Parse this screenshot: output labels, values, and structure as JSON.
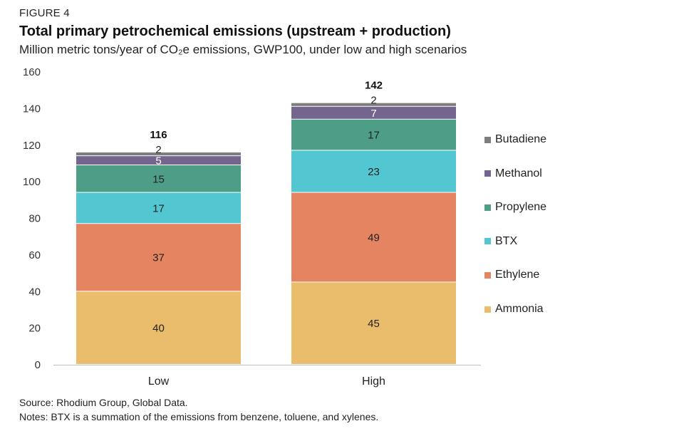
{
  "figure_label": "FIGURE 4",
  "title": "Total primary petrochemical emissions (upstream + production)",
  "subtitle": "Million metric tons/year of CO₂e emissions, GWP100, under low and high scenarios",
  "source": "Source: Rhodium Group, Global Data.",
  "notes": "Notes: BTX is a summation of the emissions from benzene, toluene, and xylenes.",
  "chart_data": {
    "type": "bar",
    "stacked": true,
    "title": "Total primary petrochemical emissions (upstream + production)",
    "xlabel": "",
    "ylabel": "",
    "ylim": [
      0,
      160
    ],
    "yticks": [
      0,
      20,
      40,
      60,
      80,
      100,
      120,
      140,
      160
    ],
    "grid": false,
    "legend_position": "right",
    "categories": [
      "Low",
      "High"
    ],
    "totals": [
      116,
      142
    ],
    "series": [
      {
        "name": "Ammonia",
        "color": "#E9BD6B",
        "values": [
          40,
          45
        ]
      },
      {
        "name": "Ethylene",
        "color": "#E48461",
        "values": [
          37,
          49
        ]
      },
      {
        "name": "BTX",
        "color": "#52C7D1",
        "values": [
          17,
          23
        ]
      },
      {
        "name": "Propylene",
        "color": "#4E9E87",
        "values": [
          15,
          17
        ]
      },
      {
        "name": "Methanol",
        "color": "#74658E",
        "values": [
          5,
          7
        ]
      },
      {
        "name": "Butadiene",
        "color": "#7E7E7E",
        "values": [
          2,
          2
        ]
      }
    ]
  }
}
